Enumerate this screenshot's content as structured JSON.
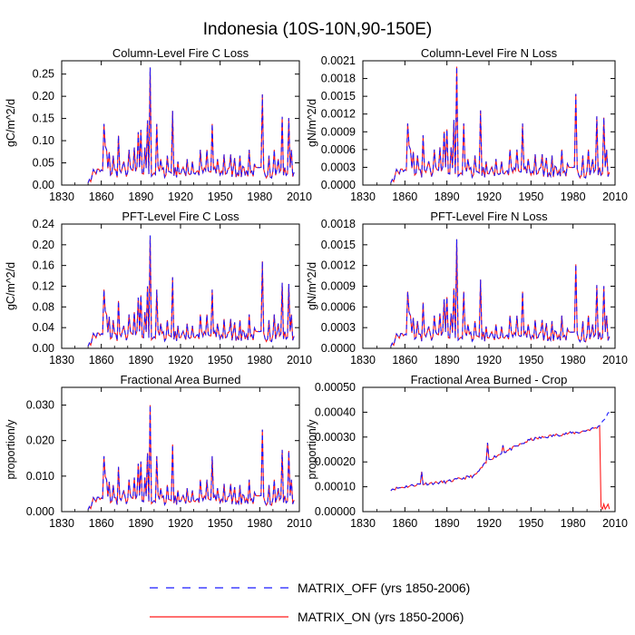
{
  "figure_title": "Indonesia (10S-10N,90-150E)",
  "colors": {
    "matrix_off": "#1a1aff",
    "matrix_on": "#ff1a1a",
    "axis": "#000000"
  },
  "legend": [
    {
      "label": "MATRIX_OFF (yrs 1850-2006)",
      "style": "dashed",
      "color": "#1a1aff"
    },
    {
      "label": "MATRIX_ON (yrs 1850-2006)",
      "style": "solid",
      "color": "#ff1a1a"
    }
  ],
  "chart_data": [
    {
      "type": "line",
      "title": "Column-Level Fire C Loss",
      "ylabel": "gC/m^2/d",
      "xlim": [
        1830,
        2010
      ],
      "xticks": [
        1830,
        1860,
        1890,
        1920,
        1950,
        1980,
        2010
      ],
      "xtick_labels": [
        "1830",
        "1860",
        "1890",
        "1920",
        "1950",
        "1980",
        "2010"
      ],
      "ylim": [
        0,
        0.28
      ],
      "yticks": [
        0,
        0.05,
        0.1,
        0.15,
        0.2,
        0.25
      ],
      "ytick_labels": [
        "0.00",
        "0.05",
        "0.10",
        "0.15",
        "0.20",
        "0.25"
      ],
      "series_kind": "fire",
      "peak": 0.265,
      "note": "Annual values 1850-2006; both series nearly identical"
    },
    {
      "type": "line",
      "title": "Column-Level Fire N Loss",
      "ylabel": "gN/m^2/d",
      "xlim": [
        1830,
        2010
      ],
      "xticks": [
        1830,
        1860,
        1890,
        1920,
        1950,
        1980,
        2010
      ],
      "xtick_labels": [
        "1830",
        "1860",
        "1890",
        "1920",
        "1950",
        "1980",
        "2010"
      ],
      "ylim": [
        0,
        0.0021
      ],
      "yticks": [
        0,
        0.0003,
        0.0006,
        0.0009,
        0.0012,
        0.0015,
        0.0018,
        0.0021
      ],
      "ytick_labels": [
        "0.0000",
        "0.0003",
        "0.0006",
        "0.0009",
        "0.0012",
        "0.0015",
        "0.0018",
        "0.0021"
      ],
      "series_kind": "fire",
      "peak": 0.002,
      "note": "Annual values 1850-2006; both series nearly identical"
    },
    {
      "type": "line",
      "title": "PFT-Level Fire C Loss",
      "ylabel": "gC/m^2/d",
      "xlim": [
        1830,
        2010
      ],
      "xticks": [
        1830,
        1860,
        1890,
        1920,
        1950,
        1980,
        2010
      ],
      "xtick_labels": [
        "1830",
        "1860",
        "1890",
        "1920",
        "1950",
        "1980",
        "2010"
      ],
      "ylim": [
        0,
        0.24
      ],
      "yticks": [
        0,
        0.04,
        0.08,
        0.12,
        0.16,
        0.2,
        0.24
      ],
      "ytick_labels": [
        "0.00",
        "0.04",
        "0.08",
        "0.12",
        "0.16",
        "0.20",
        "0.24"
      ],
      "series_kind": "fire",
      "peak": 0.218,
      "note": "Annual values 1850-2006; both series nearly identical"
    },
    {
      "type": "line",
      "title": "PFT-Level Fire N Loss",
      "ylabel": "gN/m^2/d",
      "xlim": [
        1830,
        2010
      ],
      "xticks": [
        1830,
        1860,
        1890,
        1920,
        1950,
        1980,
        2010
      ],
      "xtick_labels": [
        "1830",
        "1860",
        "1890",
        "1920",
        "1950",
        "1980",
        "2010"
      ],
      "ylim": [
        0,
        0.0018
      ],
      "yticks": [
        0,
        0.0003,
        0.0006,
        0.0009,
        0.0012,
        0.0015,
        0.0018
      ],
      "ytick_labels": [
        "0.0000",
        "0.0003",
        "0.0006",
        "0.0009",
        "0.0012",
        "0.0015",
        "0.0018"
      ],
      "series_kind": "fire",
      "peak": 0.00158,
      "note": "Annual values 1850-2006; both series nearly identical"
    },
    {
      "type": "line",
      "title": "Fractional Area Burned",
      "ylabel": "proportion/y",
      "xlim": [
        1830,
        2010
      ],
      "xticks": [
        1830,
        1860,
        1890,
        1920,
        1950,
        1980,
        2010
      ],
      "xtick_labels": [
        "1830",
        "1860",
        "1890",
        "1920",
        "1950",
        "1980",
        "2010"
      ],
      "ylim": [
        0,
        0.035
      ],
      "yticks": [
        0,
        0.01,
        0.02,
        0.03
      ],
      "ytick_labels": [
        "0.000",
        "0.010",
        "0.020",
        "0.030"
      ],
      "series_kind": "fire",
      "peak": 0.03,
      "note": "Annual values 1850-2006; both series nearly identical"
    },
    {
      "type": "line",
      "title": "Fractional Area Burned - Crop",
      "ylabel": "proportion/y",
      "xlim": [
        1830,
        2010
      ],
      "xticks": [
        1830,
        1860,
        1890,
        1920,
        1950,
        1980,
        2010
      ],
      "xtick_labels": [
        "1830",
        "1860",
        "1890",
        "1920",
        "1950",
        "1980",
        "2010"
      ],
      "ylim": [
        0,
        0.0005
      ],
      "yticks": [
        0,
        0.0001,
        0.0002,
        0.0003,
        0.0004,
        0.0005
      ],
      "ytick_labels": [
        "0.00000",
        "0.00010",
        "0.00020",
        "0.00030",
        "0.00040",
        "0.00050"
      ],
      "series_kind": "crop",
      "anchors": [
        [
          1850,
          9e-05
        ],
        [
          1870,
          0.00011
        ],
        [
          1890,
          0.00012
        ],
        [
          1910,
          0.000145
        ],
        [
          1920,
          0.00021
        ],
        [
          1935,
          0.00025
        ],
        [
          1950,
          0.00029
        ],
        [
          1970,
          0.00031
        ],
        [
          1985,
          0.00032
        ],
        [
          1998,
          0.00034
        ],
        [
          2006,
          0.0004
        ]
      ],
      "matrix_on_drop": {
        "year": 2000,
        "values_after": [
          2e-05,
          1e-05,
          3e-05,
          1e-05,
          2e-05,
          3e-05,
          1e-05
        ]
      },
      "note": "MATRIX_ON drops near zero after ~2000"
    }
  ]
}
